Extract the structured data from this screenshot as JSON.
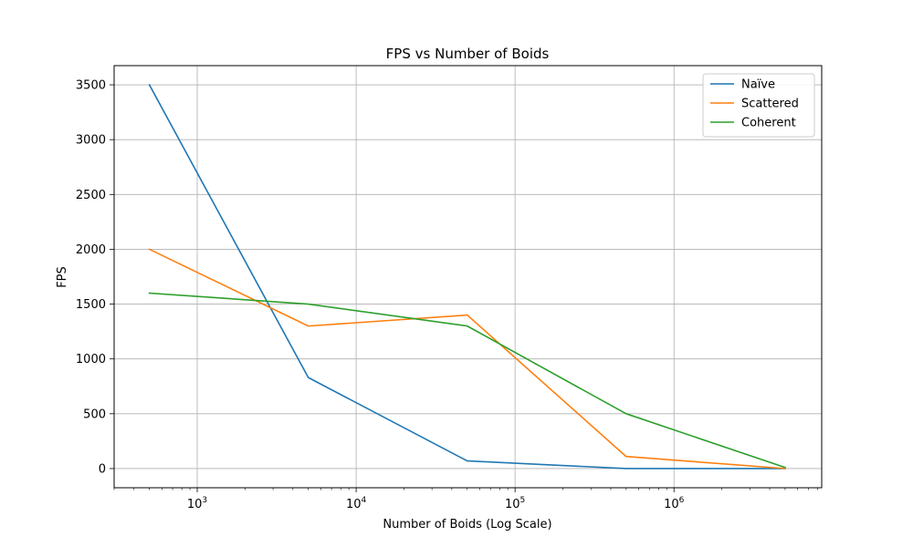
{
  "chart_data": {
    "type": "line",
    "title": "FPS vs Number of Boids",
    "xlabel": "Number of Boids (Log Scale)",
    "ylabel": "FPS",
    "xscale": "log",
    "x": [
      500,
      5000,
      50000,
      500000,
      5000000
    ],
    "xlim": [
      300,
      8500000
    ],
    "ylim": [
      -175,
      3675
    ],
    "xticks": [
      {
        "value": 1000,
        "base": "10",
        "exp": "3"
      },
      {
        "value": 10000,
        "base": "10",
        "exp": "4"
      },
      {
        "value": 100000,
        "base": "10",
        "exp": "5"
      },
      {
        "value": 1000000,
        "base": "10",
        "exp": "6"
      }
    ],
    "yticks": [
      0,
      500,
      1000,
      1500,
      2000,
      2500,
      3000,
      3500
    ],
    "grid": true,
    "legend_position": "top-right",
    "series": [
      {
        "name": "Naïve",
        "color": "#1f77b4",
        "values": [
          3500,
          830,
          70,
          0,
          0
        ]
      },
      {
        "name": "Scattered",
        "color": "#ff7f0e",
        "values": [
          2000,
          1300,
          1400,
          110,
          0
        ]
      },
      {
        "name": "Coherent",
        "color": "#2ca02c",
        "values": [
          1600,
          1500,
          1300,
          500,
          10
        ]
      }
    ]
  }
}
